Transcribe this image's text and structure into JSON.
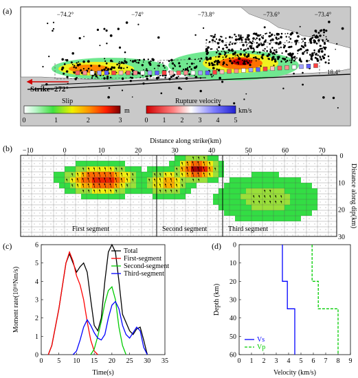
{
  "panel_a": {
    "label": "(a)",
    "lon_labels": [
      "−74.2°",
      "−74°",
      "−73.8°",
      "−73.6°",
      "−73.4°"
    ],
    "lat_label": "18.4°",
    "strike_label": "Strike=272°",
    "slip_label": "Slip",
    "slip_unit": "m",
    "slip_ticks": [
      "0",
      "1",
      "2",
      "3"
    ],
    "rupture_label": "Rupture velocity",
    "rupture_unit": "km/s",
    "rupture_ticks": [
      "0",
      "1",
      "2",
      "3",
      "4",
      "5"
    ],
    "colors": {
      "sea": "#ffffff",
      "land": "#c8c8c8",
      "slip_low": "#a0f0a0",
      "slip_mid": "#f7e000",
      "slip_high": "#c00000",
      "rv_low": "#d00000",
      "rv_high": "#3030e0"
    }
  },
  "panel_b": {
    "label": "(b)",
    "xlabel": "Distance along strike(km)",
    "ylabel": "Distance along dip(km)",
    "x_ticks": [
      "−10",
      "0",
      "10",
      "20",
      "30",
      "40",
      "50",
      "60",
      "70"
    ],
    "y_ticks": [
      "0",
      "10",
      "20",
      "30"
    ],
    "segments": [
      "First segment",
      "Second segment",
      "Third segment"
    ]
  },
  "chart_data": [
    {
      "type": "line",
      "panel": "(c)",
      "xlabel": "Time(s)",
      "ylabel": "Moment rate(10¹⁸Nm/s)",
      "xlim": [
        0,
        35
      ],
      "ylim": [
        0,
        6
      ],
      "x_ticks": [
        "0",
        "5",
        "10",
        "15",
        "20",
        "25",
        "30",
        "35"
      ],
      "y_ticks": [
        "0",
        "1",
        "2",
        "3",
        "4",
        "5",
        "6"
      ],
      "legend_position": "top-right",
      "series": [
        {
          "name": "Total",
          "color": "#000000",
          "points": [
            [
              2,
              0
            ],
            [
              3,
              0.5
            ],
            [
              5,
              2.5
            ],
            [
              7,
              5.0
            ],
            [
              8,
              5.5
            ],
            [
              9,
              5.0
            ],
            [
              10,
              4.5
            ],
            [
              11,
              4.8
            ],
            [
              12,
              5.0
            ],
            [
              13,
              4.5
            ],
            [
              14,
              3.0
            ],
            [
              15,
              1.6
            ],
            [
              16,
              1.3
            ],
            [
              17,
              2.0
            ],
            [
              18,
              4.0
            ],
            [
              19,
              5.6
            ],
            [
              20,
              6.0
            ],
            [
              21,
              5.6
            ],
            [
              22,
              4.0
            ],
            [
              23,
              2.2
            ],
            [
              25,
              1.3
            ],
            [
              26,
              1.1
            ],
            [
              27,
              1.4
            ],
            [
              28,
              1.5
            ],
            [
              29,
              0.8
            ],
            [
              30,
              0
            ]
          ]
        },
        {
          "name": "First-segment",
          "color": "#ff0000",
          "points": [
            [
              2,
              0
            ],
            [
              3,
              0.5
            ],
            [
              5,
              2.5
            ],
            [
              7,
              5.0
            ],
            [
              8,
              5.6
            ],
            [
              9,
              5.1
            ],
            [
              10,
              4.3
            ],
            [
              11,
              3.8
            ],
            [
              12,
              3.0
            ],
            [
              13,
              1.8
            ],
            [
              14,
              0.8
            ],
            [
              15,
              0.2
            ],
            [
              16,
              0
            ]
          ]
        },
        {
          "name": "Second-segment",
          "color": "#00cc00",
          "points": [
            [
              14,
              0
            ],
            [
              15,
              0.3
            ],
            [
              16,
              1.0
            ],
            [
              17,
              1.8
            ],
            [
              18,
              2.8
            ],
            [
              19,
              3.5
            ],
            [
              20,
              3.7
            ],
            [
              21,
              3.0
            ],
            [
              22,
              1.5
            ],
            [
              23,
              0.5
            ],
            [
              24,
              0
            ]
          ]
        },
        {
          "name": "Third-segment",
          "color": "#0000ff",
          "points": [
            [
              9,
              0
            ],
            [
              10,
              0.2
            ],
            [
              11,
              0.8
            ],
            [
              12,
              1.5
            ],
            [
              13,
              1.9
            ],
            [
              14,
              1.6
            ],
            [
              15,
              1.2
            ],
            [
              16,
              0.9
            ],
            [
              17,
              0.8
            ],
            [
              18,
              1.1
            ],
            [
              19,
              2.0
            ],
            [
              20,
              2.7
            ],
            [
              21,
              2.9
            ],
            [
              22,
              2.5
            ],
            [
              23,
              1.6
            ],
            [
              24,
              1.1
            ],
            [
              25,
              0.9
            ],
            [
              26,
              1.2
            ],
            [
              27,
              1.5
            ],
            [
              28,
              1.3
            ],
            [
              29,
              0.4
            ],
            [
              30,
              0
            ]
          ]
        }
      ]
    },
    {
      "type": "line",
      "panel": "(d)",
      "xlabel": "Velocity (km/s)",
      "ylabel": "Depth (km)",
      "xlim": [
        0,
        9
      ],
      "ylim": [
        0,
        60
      ],
      "y_inverted": true,
      "x_ticks": [
        "0",
        "1",
        "2",
        "3",
        "4",
        "5",
        "6",
        "7",
        "8",
        "9"
      ],
      "y_ticks": [
        "0",
        "10",
        "20",
        "30",
        "40",
        "50",
        "60"
      ],
      "legend_position": "bottom-left",
      "series": [
        {
          "name": "Vs",
          "color": "#0000ff",
          "dash": "solid",
          "points": [
            [
              3.5,
              0
            ],
            [
              3.5,
              20
            ],
            [
              3.9,
              20
            ],
            [
              3.9,
              35
            ],
            [
              4.5,
              35
            ],
            [
              4.5,
              60
            ]
          ]
        },
        {
          "name": "Vp",
          "color": "#00cc00",
          "dash": "dashed",
          "points": [
            [
              5.9,
              0
            ],
            [
              5.9,
              20
            ],
            [
              6.4,
              20
            ],
            [
              6.4,
              35
            ],
            [
              8.0,
              35
            ],
            [
              8.0,
              60
            ]
          ]
        }
      ]
    }
  ]
}
